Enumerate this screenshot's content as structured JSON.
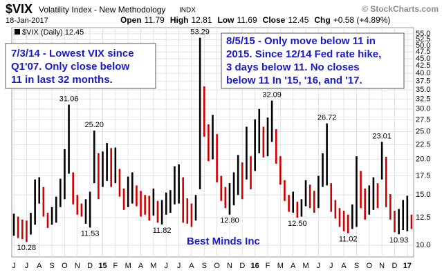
{
  "chart_data": {
    "type": "range-bar",
    "title": "$VIX",
    "subtitle": "Volatility Index - New Methodology",
    "exchange": "INDX",
    "date": "18-Jan-2017",
    "credit": "© StockCharts.com",
    "quote": [
      {
        "label": "Open",
        "value": 11.79
      },
      {
        "label": "High",
        "value": 12.81
      },
      {
        "label": "Low",
        "value": 11.69
      },
      {
        "label": "Close",
        "value": 12.45
      },
      {
        "label": "Chg",
        "value": "+0.58 (+4.89%)"
      }
    ],
    "legend": "$VIX (Daily) 12.45",
    "watermark": "Best Minds Inc",
    "annotations": [
      {
        "lines": [
          "7/3/14 - Lowest VIX since",
          "Q1'07. Only close below",
          "11 in last 32 months."
        ]
      },
      {
        "lines": [
          "8/5/15 - Only move below 11 in",
          "2015. Since 12/14 Fed rate hike,",
          "3 days below 11. No closes",
          "below 11 In '15, '16, and '17."
        ]
      }
    ],
    "categories": [
      "J",
      null,
      null,
      "J",
      null,
      null,
      "A",
      null,
      null,
      "S",
      null,
      null,
      "O",
      null,
      null,
      "N",
      null,
      null,
      "D",
      null,
      null,
      "15",
      null,
      null,
      "F",
      null,
      null,
      "M",
      null,
      null,
      "A",
      null,
      null,
      "M",
      null,
      null,
      "J",
      null,
      null,
      "J",
      null,
      null,
      "A",
      null,
      null,
      "S",
      null,
      null,
      "O",
      null,
      null,
      "N",
      null,
      null,
      "D",
      null,
      null,
      "16",
      null,
      null,
      "F",
      null,
      null,
      "M",
      null,
      null,
      "A",
      null,
      null,
      "M",
      null,
      null,
      "J",
      null,
      null,
      "J",
      null,
      null,
      "A",
      null,
      null,
      "S",
      null,
      null,
      "O",
      null,
      null,
      "N",
      null,
      null,
      "D",
      null,
      null,
      "17",
      null
    ],
    "series": [
      {
        "color": "#000000",
        "values": [
          12.9,
          12.6,
          12.3,
          12.2,
          13.0,
          17.0,
          17.3,
          16.0,
          13.0,
          13.6,
          14.8,
          17.1,
          21.7,
          31.06,
          18.0,
          15.0,
          14.0,
          14.5,
          15.4,
          25.2,
          21.0,
          21.3,
          22.8,
          21.9,
          22.0,
          18.5,
          15.8,
          17.4,
          18.0,
          16.2,
          15.5,
          15.0,
          14.9,
          15.8,
          14.3,
          14.4,
          15.3,
          15.6,
          18.9,
          19.2,
          17.3,
          14.6,
          14.0,
          15.0,
          53.29,
          36.0,
          26.5,
          28.6,
          24.5,
          17.5,
          16.0,
          16.5,
          18.0,
          20.7,
          19.5,
          26.0,
          20.5,
          27.6,
          30.0,
          26.0,
          28.0,
          32.09,
          25.5,
          20.5,
          16.9,
          15.0,
          15.4,
          14.2,
          14.5,
          16.9,
          16.3,
          15.5,
          17.5,
          21.0,
          26.72,
          16.5,
          14.4,
          13.5,
          13.2,
          12.8,
          13.9,
          20.5,
          18.2,
          15.8,
          16.2,
          17.3,
          16.5,
          23.01,
          20.4,
          15.1,
          13.2,
          13.4,
          14.4,
          14.9,
          12.8
        ],
        "value_labels": [
          null,
          null,
          null,
          null,
          null,
          null,
          null,
          null,
          null,
          null,
          null,
          null,
          null,
          "31.06",
          null,
          null,
          null,
          null,
          null,
          "25.20",
          null,
          null,
          null,
          null,
          null,
          null,
          null,
          null,
          null,
          null,
          null,
          null,
          null,
          null,
          null,
          null,
          null,
          null,
          null,
          null,
          null,
          null,
          null,
          null,
          "53.29",
          null,
          null,
          null,
          null,
          null,
          null,
          null,
          null,
          null,
          null,
          null,
          null,
          null,
          null,
          null,
          null,
          "32.09",
          null,
          null,
          null,
          null,
          null,
          null,
          null,
          null,
          null,
          null,
          null,
          null,
          "26.72",
          null,
          null,
          null,
          null,
          null,
          null,
          null,
          null,
          null,
          null,
          null,
          null,
          "23.01",
          null,
          null,
          null,
          null,
          null,
          null,
          null
        ]
      },
      {
        "color": "#cc0000",
        "values": [
          10.8,
          10.6,
          10.5,
          10.28,
          10.9,
          11.8,
          14.0,
          12.6,
          11.5,
          11.8,
          12.0,
          13.6,
          14.5,
          17.8,
          13.9,
          12.8,
          12.6,
          11.9,
          11.53,
          16.5,
          14.5,
          16.0,
          16.8,
          16.0,
          16.5,
          14.8,
          13.3,
          13.6,
          14.0,
          13.7,
          12.6,
          12.8,
          12.2,
          12.7,
          12.0,
          11.82,
          12.8,
          13.0,
          13.9,
          14.0,
          12.0,
          11.9,
          11.6,
          12.2,
          15.7,
          24.0,
          19.7,
          20.0,
          16.6,
          14.3,
          13.5,
          12.8,
          13.8,
          15.0,
          14.5,
          17.0,
          15.7,
          18.2,
          21.0,
          20.3,
          20.5,
          23.0,
          19.3,
          16.3,
          14.3,
          13.1,
          13.0,
          12.5,
          12.6,
          13.7,
          13.5,
          13.0,
          13.5,
          16.0,
          16.2,
          13.1,
          12.4,
          11.6,
          11.2,
          11.02,
          11.4,
          11.6,
          13.5,
          12.3,
          12.8,
          13.3,
          13.5,
          17.0,
          13.6,
          12.3,
          11.1,
          10.93,
          11.3,
          11.2,
          11.4
        ],
        "value_labels": [
          null,
          null,
          null,
          "10.28",
          null,
          null,
          null,
          null,
          null,
          null,
          null,
          null,
          null,
          null,
          null,
          null,
          null,
          null,
          "11.53",
          null,
          null,
          null,
          null,
          null,
          null,
          null,
          null,
          null,
          null,
          null,
          null,
          null,
          null,
          null,
          null,
          "11.82",
          null,
          null,
          null,
          null,
          null,
          null,
          null,
          null,
          null,
          null,
          null,
          null,
          null,
          null,
          null,
          "12.80",
          null,
          null,
          null,
          null,
          null,
          null,
          null,
          null,
          null,
          null,
          null,
          null,
          null,
          null,
          null,
          "12.50",
          null,
          null,
          null,
          null,
          null,
          null,
          null,
          null,
          null,
          null,
          null,
          "11.02",
          null,
          null,
          null,
          null,
          null,
          null,
          null,
          null,
          null,
          null,
          null,
          "10.93",
          null,
          null,
          null
        ]
      }
    ],
    "log_scale": true,
    "grid": true,
    "ylim": [
      9.1,
      57.8
    ],
    "yticks": [
      {
        "value": 10,
        "label": "10.0"
      },
      12.5,
      {
        "value": 15,
        "label": "15.0"
      },
      17.5,
      {
        "value": 20,
        "label": "20.0"
      },
      22.5,
      {
        "value": 25,
        "label": "25.0"
      },
      27.5,
      {
        "value": 30,
        "label": "30.0"
      },
      32.5,
      {
        "value": 35,
        "label": "35.0"
      },
      37.5,
      {
        "value": 40,
        "label": "40.0"
      },
      42.5,
      {
        "value": 45,
        "label": "45.0"
      },
      47.5,
      {
        "value": 50,
        "label": "50.0"
      },
      52.5,
      {
        "value": 55,
        "label": "55.0"
      }
    ]
  }
}
